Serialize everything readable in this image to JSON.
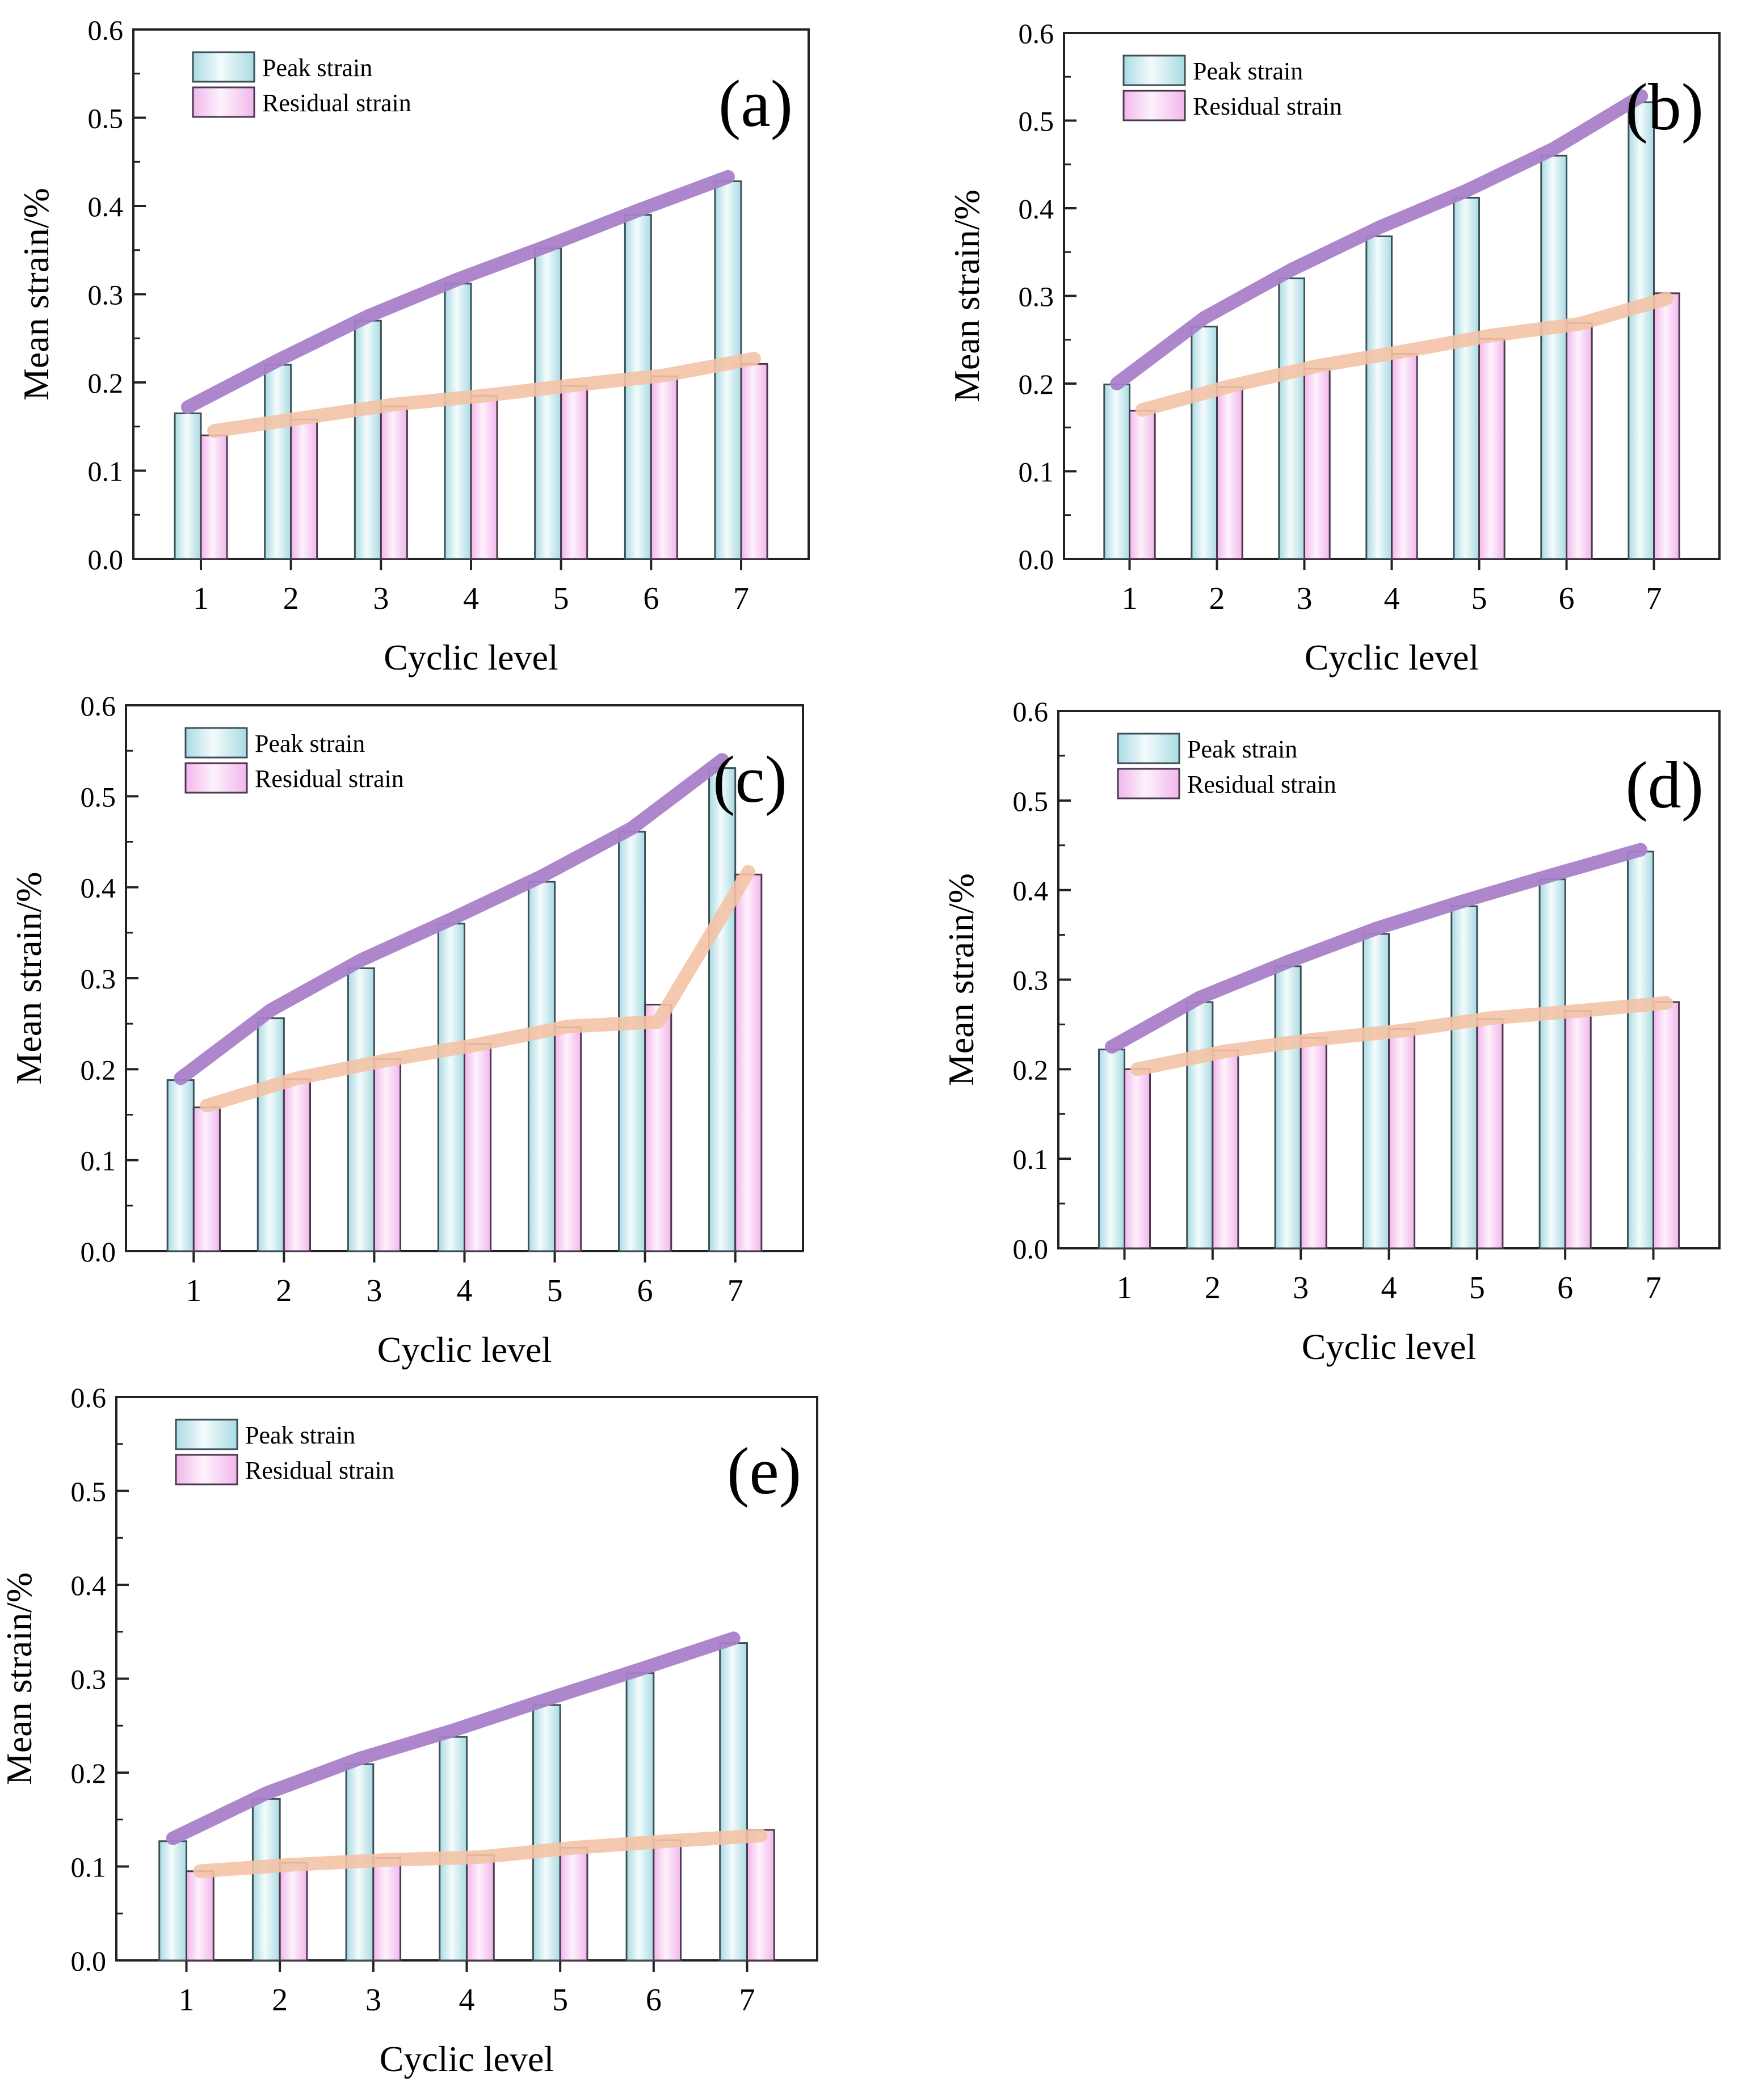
{
  "figure": {
    "colors": {
      "peak_fill": "#d6eef2",
      "residual_fill": "#f7d2f2",
      "peak_trend": "#a97fc9",
      "residual_trend": "#f3c3a6",
      "axis": "#222222"
    }
  },
  "chart_data": [
    {
      "type": "bar",
      "panel_label": "(a)",
      "xlabel": "Cyclic level",
      "ylabel": "Mean strain/%",
      "ylim": [
        0,
        0.6
      ],
      "yticks": [
        "0.0",
        "0.1",
        "0.2",
        "0.3",
        "0.4",
        "0.5",
        "0.6"
      ],
      "categories": [
        "1",
        "2",
        "3",
        "4",
        "5",
        "6",
        "7"
      ],
      "legend_position": "top-left",
      "grid": false,
      "series": [
        {
          "name": "Peak strain",
          "values": [
            0.165,
            0.22,
            0.27,
            0.312,
            0.352,
            0.39,
            0.428
          ]
        },
        {
          "name": "Residual strain",
          "values": [
            0.14,
            0.158,
            0.173,
            0.185,
            0.196,
            0.207,
            0.221
          ]
        }
      ],
      "trend_peak": [
        0.172,
        0.225,
        0.275,
        0.317,
        0.355,
        0.395,
        0.433
      ],
      "trend_residual": [
        0.145,
        0.16,
        0.175,
        0.185,
        0.197,
        0.208,
        0.227
      ]
    },
    {
      "type": "bar",
      "panel_label": "(b)",
      "xlabel": "Cyclic level",
      "ylabel": "Mean strain/%",
      "ylim": [
        0,
        0.6
      ],
      "yticks": [
        "0.0",
        "0.1",
        "0.2",
        "0.3",
        "0.4",
        "0.5",
        "0.6"
      ],
      "categories": [
        "1",
        "2",
        "3",
        "4",
        "5",
        "6",
        "7"
      ],
      "legend_position": "top-left",
      "grid": false,
      "series": [
        {
          "name": "Peak strain",
          "values": [
            0.199,
            0.265,
            0.32,
            0.368,
            0.412,
            0.46,
            0.521
          ]
        },
        {
          "name": "Residual strain",
          "values": [
            0.169,
            0.196,
            0.217,
            0.234,
            0.251,
            0.269,
            0.303
          ]
        }
      ],
      "trend_peak": [
        0.2,
        0.275,
        0.33,
        0.378,
        0.42,
        0.468,
        0.528
      ],
      "trend_residual": [
        0.17,
        0.197,
        0.22,
        0.237,
        0.255,
        0.268,
        0.297
      ]
    },
    {
      "type": "bar",
      "panel_label": "(c)",
      "xlabel": "Cyclic level",
      "ylabel": "Mean strain/%",
      "ylim": [
        0,
        0.6
      ],
      "yticks": [
        "0.0",
        "0.1",
        "0.2",
        "0.3",
        "0.4",
        "0.5",
        "0.6"
      ],
      "categories": [
        "1",
        "2",
        "3",
        "4",
        "5",
        "6",
        "7"
      ],
      "legend_position": "top-left",
      "grid": false,
      "series": [
        {
          "name": "Peak strain",
          "values": [
            0.188,
            0.256,
            0.311,
            0.36,
            0.406,
            0.461,
            0.531
          ]
        },
        {
          "name": "Residual strain",
          "values": [
            0.158,
            0.189,
            0.211,
            0.228,
            0.246,
            0.271,
            0.414
          ]
        }
      ],
      "trend_peak": [
        0.19,
        0.265,
        0.32,
        0.365,
        0.412,
        0.465,
        0.54
      ],
      "trend_residual": [
        0.16,
        0.19,
        0.21,
        0.227,
        0.247,
        0.252,
        0.417
      ]
    },
    {
      "type": "bar",
      "panel_label": "(d)",
      "xlabel": "Cyclic level",
      "ylabel": "Mean strain/%",
      "ylim": [
        0,
        0.6
      ],
      "yticks": [
        "0.0",
        "0.1",
        "0.2",
        "0.3",
        "0.4",
        "0.5",
        "0.6"
      ],
      "categories": [
        "1",
        "2",
        "3",
        "4",
        "5",
        "6",
        "7"
      ],
      "legend_position": "top-left",
      "grid": false,
      "series": [
        {
          "name": "Peak strain",
          "values": [
            0.222,
            0.275,
            0.315,
            0.351,
            0.382,
            0.412,
            0.443
          ]
        },
        {
          "name": "Residual strain",
          "values": [
            0.2,
            0.221,
            0.235,
            0.245,
            0.256,
            0.265,
            0.275
          ]
        }
      ],
      "trend_peak": [
        0.225,
        0.28,
        0.32,
        0.357,
        0.388,
        0.417,
        0.445
      ],
      "trend_residual": [
        0.2,
        0.22,
        0.233,
        0.243,
        0.257,
        0.265,
        0.274
      ]
    },
    {
      "type": "bar",
      "panel_label": "(e)",
      "xlabel": "Cyclic level",
      "ylabel": "Mean strain/%",
      "ylim": [
        0,
        0.6
      ],
      "yticks": [
        "0.0",
        "0.1",
        "0.2",
        "0.3",
        "0.4",
        "0.5",
        "0.6"
      ],
      "categories": [
        "1",
        "2",
        "3",
        "4",
        "5",
        "6",
        "7"
      ],
      "legend_position": "top-left",
      "grid": false,
      "series": [
        {
          "name": "Peak strain",
          "values": [
            0.127,
            0.172,
            0.209,
            0.238,
            0.272,
            0.306,
            0.338
          ]
        },
        {
          "name": "Residual strain",
          "values": [
            0.095,
            0.104,
            0.109,
            0.112,
            0.12,
            0.128,
            0.139
          ]
        }
      ],
      "trend_peak": [
        0.13,
        0.178,
        0.215,
        0.245,
        0.278,
        0.31,
        0.343
      ],
      "trend_residual": [
        0.095,
        0.102,
        0.107,
        0.11,
        0.12,
        0.127,
        0.133
      ]
    }
  ]
}
